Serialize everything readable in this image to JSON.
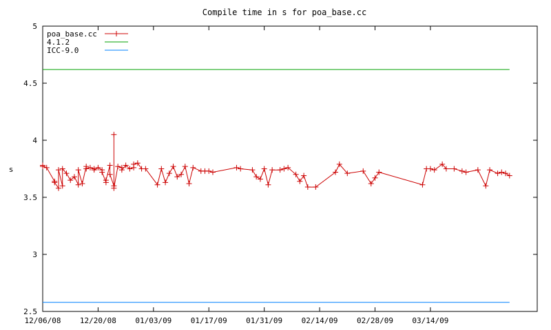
{
  "chart_data": {
    "type": "line",
    "title": "Compile time in s for poa_base.cc",
    "xlabel": "",
    "ylabel": "s",
    "ylim": [
      2.5,
      5
    ],
    "xlim": [
      "2008-12-06",
      "2009-04-10"
    ],
    "yticks": [
      "2.5",
      "3",
      "3.5",
      "4",
      "4.5",
      "5"
    ],
    "xticks": [
      {
        "date": "2008-12-06",
        "label": "12/06/08"
      },
      {
        "date": "2008-12-20",
        "label": "12/20/08"
      },
      {
        "date": "2009-01-03",
        "label": "01/03/09"
      },
      {
        "date": "2009-01-17",
        "label": "01/17/09"
      },
      {
        "date": "2009-01-31",
        "label": "01/31/09"
      },
      {
        "date": "2009-02-14",
        "label": "02/14/09"
      },
      {
        "date": "2009-02-28",
        "label": "02/28/09"
      },
      {
        "date": "2009-03-14",
        "label": "03/14/09"
      }
    ],
    "grid": false,
    "legend_position": "top-left",
    "series": [
      {
        "name": "poa_base.cc",
        "color": "#cc0000",
        "marker": "plus",
        "points": [
          [
            "2008-12-06",
            3.78
          ],
          [
            "2008-12-06",
            3.77
          ],
          [
            "2008-12-07",
            3.76
          ],
          [
            "2008-12-09",
            3.64
          ],
          [
            "2008-12-09",
            3.63
          ],
          [
            "2008-12-10",
            3.58
          ],
          [
            "2008-12-10",
            3.74
          ],
          [
            "2008-12-11",
            3.6
          ],
          [
            "2008-12-11",
            3.75
          ],
          [
            "2008-12-12",
            3.71
          ],
          [
            "2008-12-13",
            3.65
          ],
          [
            "2008-12-14",
            3.68
          ],
          [
            "2008-12-15",
            3.61
          ],
          [
            "2008-12-15",
            3.74
          ],
          [
            "2008-12-16",
            3.62
          ],
          [
            "2008-12-17",
            3.77
          ],
          [
            "2008-12-17",
            3.75
          ],
          [
            "2008-12-18",
            3.76
          ],
          [
            "2008-12-19",
            3.75
          ],
          [
            "2008-12-19",
            3.74
          ],
          [
            "2008-12-20",
            3.76
          ],
          [
            "2008-12-21",
            3.74
          ],
          [
            "2008-12-21",
            3.72
          ],
          [
            "2008-12-22",
            3.63
          ],
          [
            "2008-12-22",
            3.65
          ],
          [
            "2008-12-23",
            3.78
          ],
          [
            "2008-12-23",
            3.7
          ],
          [
            "2008-12-24",
            3.6
          ],
          [
            "2008-12-24",
            4.05
          ],
          [
            "2008-12-24",
            3.58
          ],
          [
            "2008-12-25",
            3.77
          ],
          [
            "2008-12-26",
            3.76
          ],
          [
            "2008-12-26",
            3.74
          ],
          [
            "2008-12-27",
            3.78
          ],
          [
            "2008-12-28",
            3.75
          ],
          [
            "2008-12-29",
            3.76
          ],
          [
            "2008-12-29",
            3.79
          ],
          [
            "2008-12-30",
            3.8
          ],
          [
            "2008-12-31",
            3.75
          ],
          [
            "2009-01-01",
            3.75
          ],
          [
            "2009-01-04",
            3.61
          ],
          [
            "2009-01-05",
            3.75
          ],
          [
            "2009-01-06",
            3.63
          ],
          [
            "2009-01-07",
            3.71
          ],
          [
            "2009-01-08",
            3.77
          ],
          [
            "2009-01-09",
            3.68
          ],
          [
            "2009-01-10",
            3.7
          ],
          [
            "2009-01-11",
            3.77
          ],
          [
            "2009-01-12",
            3.62
          ],
          [
            "2009-01-13",
            3.76
          ],
          [
            "2009-01-15",
            3.73
          ],
          [
            "2009-01-16",
            3.73
          ],
          [
            "2009-01-17",
            3.73
          ],
          [
            "2009-01-18",
            3.72
          ],
          [
            "2009-01-24",
            3.76
          ],
          [
            "2009-01-25",
            3.75
          ],
          [
            "2009-01-28",
            3.74
          ],
          [
            "2009-01-29",
            3.68
          ],
          [
            "2009-01-30",
            3.66
          ],
          [
            "2009-01-31",
            3.75
          ],
          [
            "2009-02-01",
            3.61
          ],
          [
            "2009-02-02",
            3.74
          ],
          [
            "2009-02-04",
            3.74
          ],
          [
            "2009-02-05",
            3.75
          ],
          [
            "2009-02-06",
            3.76
          ],
          [
            "2009-02-08",
            3.7
          ],
          [
            "2009-02-09",
            3.64
          ],
          [
            "2009-02-10",
            3.69
          ],
          [
            "2009-02-11",
            3.59
          ],
          [
            "2009-02-13",
            3.59
          ],
          [
            "2009-02-18",
            3.72
          ],
          [
            "2009-02-19",
            3.79
          ],
          [
            "2009-02-21",
            3.71
          ],
          [
            "2009-02-25",
            3.73
          ],
          [
            "2009-02-27",
            3.62
          ],
          [
            "2009-02-28",
            3.67
          ],
          [
            "2009-03-01",
            3.72
          ],
          [
            "2009-03-12",
            3.61
          ],
          [
            "2009-03-13",
            3.75
          ],
          [
            "2009-03-14",
            3.75
          ],
          [
            "2009-03-15",
            3.74
          ],
          [
            "2009-03-17",
            3.79
          ],
          [
            "2009-03-18",
            3.75
          ],
          [
            "2009-03-20",
            3.75
          ],
          [
            "2009-03-22",
            3.73
          ],
          [
            "2009-03-23",
            3.72
          ],
          [
            "2009-03-26",
            3.74
          ],
          [
            "2009-03-28",
            3.6
          ],
          [
            "2009-03-29",
            3.74
          ],
          [
            "2009-03-31",
            3.71
          ],
          [
            "2009-04-01",
            3.72
          ],
          [
            "2009-04-02",
            3.71
          ],
          [
            "2009-04-03",
            3.69
          ]
        ]
      },
      {
        "name": "4.1.2",
        "color": "#00a000",
        "marker": "none",
        "points": [
          [
            "2008-12-06",
            4.62
          ],
          [
            "2009-04-03",
            4.62
          ]
        ]
      },
      {
        "name": "ICC-9.0",
        "color": "#0080ff",
        "marker": "none",
        "points": [
          [
            "2008-12-06",
            2.58
          ],
          [
            "2009-04-03",
            2.58
          ]
        ]
      }
    ]
  }
}
